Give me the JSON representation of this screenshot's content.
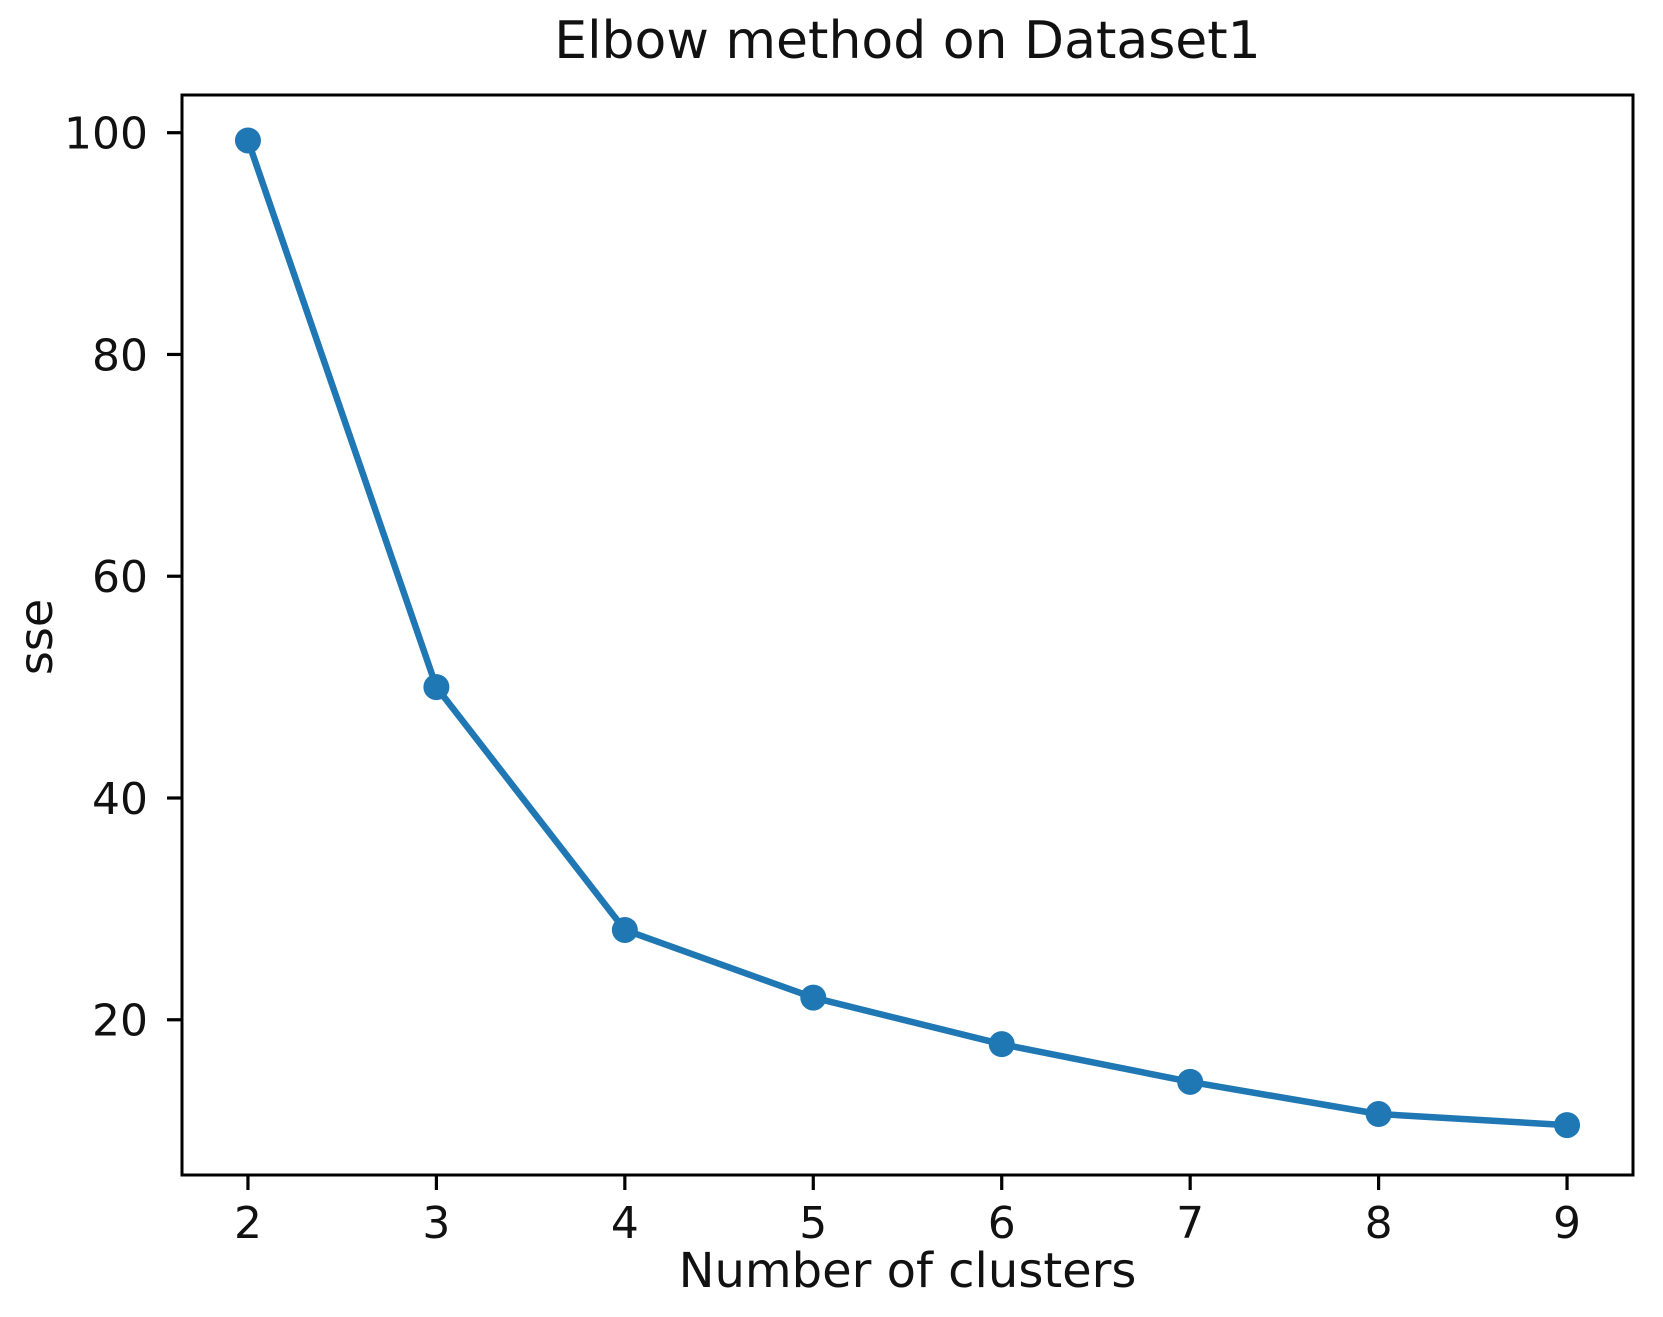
{
  "chart_data": {
    "type": "line",
    "title": "Elbow method on Dataset1",
    "xlabel": "Number of clusters",
    "ylabel": "sse",
    "x": [
      2,
      3,
      4,
      5,
      6,
      7,
      8,
      9
    ],
    "series": [
      {
        "name": "sse",
        "values": [
          99.3,
          50.0,
          28.1,
          22.0,
          17.8,
          14.4,
          11.5,
          10.5
        ]
      }
    ],
    "xticks": [
      2,
      3,
      4,
      5,
      6,
      7,
      8,
      9
    ],
    "yticks": [
      20,
      40,
      60,
      80,
      100
    ],
    "xlim": [
      1.65,
      9.35
    ],
    "ylim": [
      6.0,
      103.4
    ],
    "grid": false,
    "legend": "none",
    "line_color": "#1f77b4",
    "marker": "circle",
    "axis_color": "#000000",
    "text_color": "#111111",
    "background_color": "#ffffff"
  }
}
